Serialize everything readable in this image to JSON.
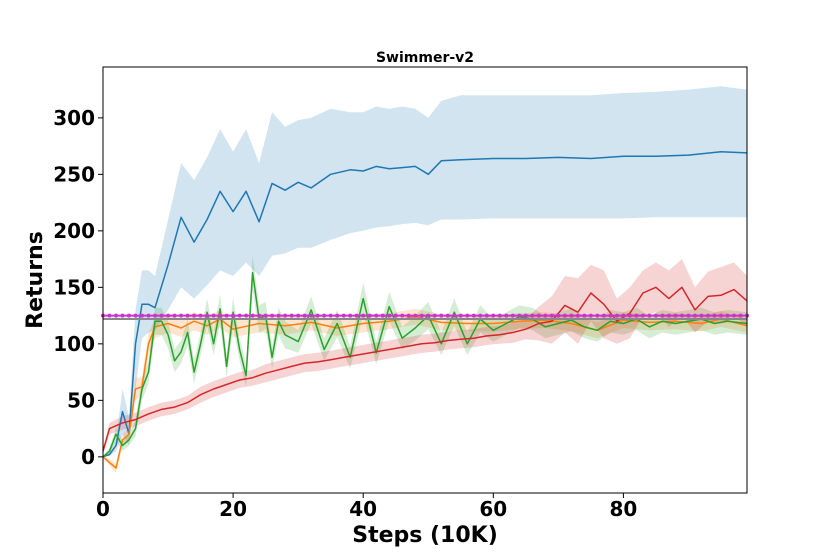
{
  "chart_data": {
    "type": "line",
    "title": "Swimmer-v2",
    "xlabel": "Steps (10K)",
    "ylabel": "Returns",
    "xlim": [
      0,
      99
    ],
    "ylim": [
      -32,
      345
    ],
    "xticks": [
      0,
      20,
      40,
      60,
      80
    ],
    "yticks": [
      0,
      50,
      100,
      150,
      200,
      250,
      300
    ],
    "grid": false,
    "legend": "none",
    "series": [
      {
        "name": "blue",
        "color": "#1f77b4",
        "band_color": "#1f77b4",
        "x": [
          0,
          1,
          2,
          3,
          4,
          5,
          6,
          7,
          8,
          10,
          12,
          14,
          16,
          18,
          20,
          22,
          24,
          26,
          28,
          30,
          32,
          35,
          38,
          40,
          42,
          44,
          46,
          48,
          50,
          52,
          55,
          60,
          65,
          70,
          75,
          80,
          85,
          90,
          95,
          99
        ],
        "y": [
          0,
          2,
          10,
          40,
          20,
          100,
          135,
          135,
          132,
          170,
          212,
          190,
          210,
          235,
          217,
          235,
          208,
          242,
          236,
          243,
          238,
          250,
          254,
          253,
          257,
          255,
          256,
          257,
          250,
          262,
          263,
          264,
          264,
          265,
          264,
          266,
          266,
          267,
          270,
          269
        ],
        "lower": [
          0,
          1,
          5,
          20,
          10,
          60,
          105,
          110,
          112,
          130,
          150,
          140,
          152,
          165,
          160,
          172,
          160,
          178,
          180,
          185,
          185,
          192,
          198,
          200,
          203,
          204,
          206,
          207,
          205,
          210,
          210,
          211,
          211,
          211,
          211,
          211,
          212,
          212,
          212,
          212
        ],
        "upper": [
          0,
          4,
          15,
          60,
          35,
          130,
          165,
          165,
          160,
          210,
          260,
          245,
          265,
          290,
          270,
          290,
          260,
          305,
          292,
          298,
          300,
          308,
          305,
          305,
          310,
          308,
          310,
          308,
          300,
          315,
          320,
          320,
          320,
          320,
          320,
          322,
          323,
          325,
          328,
          325
        ]
      },
      {
        "name": "orange",
        "color": "#ff7f0e",
        "band_color": "#ff7f0e",
        "x": [
          0,
          1,
          2,
          3,
          4,
          5,
          6,
          7,
          8,
          10,
          12,
          14,
          16,
          18,
          20,
          24,
          28,
          32,
          36,
          40,
          44,
          48,
          52,
          56,
          60,
          64,
          68,
          72,
          76,
          80,
          84,
          88,
          92,
          95,
          99
        ],
        "y": [
          0,
          -5,
          -10,
          15,
          20,
          60,
          62,
          100,
          115,
          118,
          114,
          120,
          116,
          122,
          113,
          118,
          116,
          119,
          114,
          118,
          120,
          124,
          119,
          118,
          118,
          120,
          121,
          118,
          112,
          121,
          119,
          120,
          118,
          122,
          116
        ],
        "lower": [
          0,
          -8,
          -14,
          10,
          14,
          50,
          55,
          90,
          105,
          110,
          106,
          112,
          108,
          114,
          106,
          110,
          108,
          112,
          107,
          110,
          113,
          117,
          112,
          111,
          111,
          113,
          114,
          111,
          105,
          114,
          112,
          113,
          111,
          115,
          110
        ],
        "upper": [
          0,
          -2,
          -6,
          20,
          26,
          70,
          70,
          110,
          122,
          126,
          122,
          128,
          124,
          130,
          120,
          126,
          124,
          126,
          121,
          126,
          127,
          131,
          126,
          125,
          125,
          127,
          128,
          125,
          119,
          128,
          126,
          127,
          125,
          129,
          122
        ]
      },
      {
        "name": "green",
        "color": "#2ca02c",
        "band_color": "#2ca02c",
        "x": [
          0,
          1,
          2,
          3,
          4,
          5,
          6,
          7,
          8,
          9,
          10,
          11,
          12,
          13,
          14,
          15,
          16,
          17,
          18,
          19,
          20,
          21,
          22,
          23,
          24,
          25,
          26,
          27,
          28,
          30,
          32,
          34,
          36,
          38,
          40,
          42,
          44,
          46,
          48,
          50,
          52,
          54,
          56,
          58,
          60,
          62,
          64,
          66,
          68,
          70,
          72,
          74,
          76,
          78,
          80,
          82,
          84,
          86,
          88,
          90,
          92,
          94,
          96,
          99
        ],
        "y": [
          0,
          5,
          20,
          10,
          15,
          25,
          60,
          75,
          120,
          120,
          108,
          85,
          93,
          110,
          75,
          100,
          128,
          100,
          131,
          80,
          128,
          95,
          72,
          163,
          122,
          125,
          88,
          120,
          108,
          102,
          130,
          95,
          118,
          88,
          140,
          92,
          133,
          105,
          114,
          125,
          100,
          128,
          100,
          122,
          112,
          118,
          124,
          122,
          115,
          118,
          121,
          115,
          112,
          120,
          118,
          122,
          115,
          120,
          118,
          120,
          122,
          118,
          120,
          118
        ],
        "lower": [
          0,
          2,
          14,
          5,
          10,
          18,
          50,
          65,
          108,
          108,
          96,
          75,
          83,
          98,
          65,
          90,
          116,
          90,
          118,
          70,
          115,
          85,
          62,
          148,
          110,
          113,
          78,
          108,
          96,
          92,
          118,
          85,
          106,
          78,
          126,
          82,
          120,
          95,
          103,
          113,
          90,
          116,
          90,
          110,
          102,
          108,
          114,
          112,
          105,
          108,
          111,
          105,
          102,
          110,
          108,
          112,
          105,
          110,
          108,
          110,
          112,
          108,
          110,
          108
        ],
        "upper": [
          0,
          8,
          26,
          15,
          20,
          32,
          70,
          85,
          132,
          132,
          120,
          95,
          103,
          122,
          85,
          110,
          140,
          110,
          144,
          90,
          141,
          105,
          82,
          178,
          134,
          137,
          98,
          132,
          120,
          112,
          142,
          105,
          130,
          98,
          154,
          102,
          146,
          115,
          125,
          137,
          110,
          140,
          110,
          134,
          122,
          128,
          134,
          132,
          125,
          128,
          131,
          125,
          122,
          130,
          128,
          132,
          125,
          130,
          128,
          130,
          132,
          128,
          130,
          128
        ]
      },
      {
        "name": "red",
        "color": "#d62728",
        "band_color": "#d62728",
        "x": [
          0,
          1,
          3,
          5,
          7,
          9,
          11,
          13,
          15,
          17,
          19,
          21,
          23,
          25,
          27,
          29,
          31,
          33,
          35,
          37,
          39,
          41,
          43,
          45,
          47,
          49,
          51,
          53,
          55,
          57,
          59,
          61,
          63,
          65,
          67,
          69,
          71,
          73,
          75,
          77,
          79,
          81,
          83,
          85,
          87,
          89,
          91,
          93,
          95,
          97,
          99
        ],
        "y": [
          5,
          25,
          30,
          33,
          38,
          42,
          44,
          48,
          55,
          60,
          64,
          68,
          70,
          74,
          77,
          80,
          83,
          84,
          86,
          88,
          90,
          92,
          94,
          96,
          98,
          100,
          101,
          103,
          104,
          105,
          107,
          108,
          110,
          113,
          118,
          120,
          134,
          128,
          145,
          135,
          120,
          127,
          145,
          150,
          140,
          150,
          130,
          142,
          143,
          148,
          138
        ],
        "lower": [
          2,
          20,
          24,
          27,
          32,
          36,
          38,
          42,
          48,
          53,
          57,
          61,
          63,
          66,
          69,
          72,
          75,
          76,
          78,
          80,
          82,
          84,
          86,
          88,
          90,
          92,
          93,
          95,
          96,
          97,
          99,
          100,
          101,
          104,
          103,
          100,
          110,
          100,
          120,
          105,
          100,
          105,
          125,
          128,
          115,
          125,
          110,
          120,
          118,
          125,
          115
        ],
        "upper": [
          8,
          30,
          36,
          39,
          44,
          48,
          50,
          54,
          62,
          67,
          71,
          75,
          77,
          82,
          85,
          88,
          91,
          92,
          94,
          96,
          98,
          100,
          102,
          104,
          106,
          108,
          109,
          111,
          112,
          113,
          115,
          116,
          119,
          122,
          133,
          142,
          160,
          158,
          170,
          165,
          140,
          150,
          165,
          172,
          165,
          175,
          150,
          164,
          168,
          172,
          160
        ]
      }
    ],
    "reference_lines": [
      {
        "name": "magenta-baseline",
        "y": 125,
        "color": "#cc33cc",
        "marker": "circle"
      },
      {
        "name": "gray-baseline",
        "y": 122,
        "color": "#888888",
        "marker": "none"
      }
    ]
  }
}
